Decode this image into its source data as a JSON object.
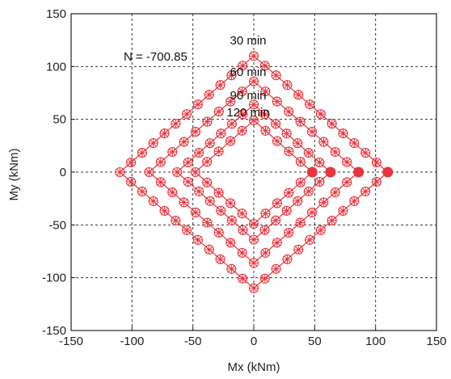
{
  "chart_data": {
    "type": "line",
    "xlabel": "Mx (kNm)",
    "ylabel": "My (kNm)",
    "xlim": [
      -150,
      150
    ],
    "ylim": [
      -150,
      150
    ],
    "x_ticks": [
      "-150",
      "-100",
      "-50",
      "0",
      "50",
      "100",
      "150"
    ],
    "y_ticks": [
      "150",
      "100",
      "50",
      "0",
      "-50",
      "-100",
      "-150"
    ],
    "grid": true,
    "annotation": "N = -700.85",
    "color": "#e8343c",
    "series": [
      {
        "name": "30 min",
        "rx": 110,
        "ry": 110
      },
      {
        "name": "60 min",
        "rx": 86,
        "ry": 86
      },
      {
        "name": "90 min",
        "rx": 63,
        "ry": 64
      },
      {
        "name": "120 min",
        "rx": 48,
        "ry": 49
      }
    ]
  }
}
